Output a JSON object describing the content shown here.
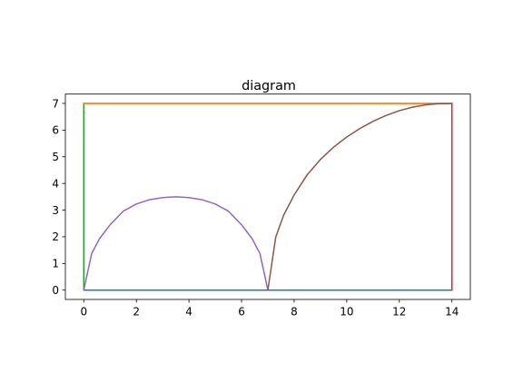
{
  "chart_data": {
    "type": "line",
    "title": "diagram",
    "xlabel": "",
    "ylabel": "",
    "xlim": [
      -0.7,
      14.7
    ],
    "ylim": [
      -0.35,
      7.35
    ],
    "xticks": [
      0,
      2,
      4,
      6,
      8,
      10,
      12,
      14
    ],
    "xtick_labels": [
      "0",
      "2",
      "4",
      "6",
      "8",
      "10",
      "12",
      "14"
    ],
    "yticks": [
      0,
      1,
      2,
      3,
      4,
      5,
      6,
      7
    ],
    "ytick_labels": [
      "0",
      "1",
      "2",
      "3",
      "4",
      "5",
      "6",
      "7"
    ],
    "grid": false,
    "legend": "none",
    "series": [
      {
        "color": "#1f77b4",
        "x": [
          0,
          14
        ],
        "y": [
          0,
          0
        ]
      },
      {
        "color": "#ff7f0e",
        "x": [
          0,
          14
        ],
        "y": [
          7,
          7
        ]
      },
      {
        "color": "#2ca02c",
        "x": [
          0,
          0
        ],
        "y": [
          0,
          7
        ]
      },
      {
        "color": "#d62728",
        "x": [
          14,
          14
        ],
        "y": [
          0,
          7
        ]
      },
      {
        "color": "#9467bd",
        "x": [
          0,
          0.3,
          0.6,
          1.0,
          1.5,
          2.0,
          2.5,
          3.0,
          3.5,
          4.0,
          4.5,
          5.0,
          5.5,
          6.0,
          6.4,
          6.7,
          7.0
        ],
        "y": [
          0,
          1.37,
          1.93,
          2.45,
          2.96,
          3.23,
          3.39,
          3.47,
          3.5,
          3.47,
          3.39,
          3.23,
          2.96,
          2.45,
          1.93,
          1.37,
          0
        ]
      },
      {
        "color": "#ff7f0e",
        "x": [
          0,
          14
        ],
        "y": [
          7,
          7
        ]
      },
      {
        "color": "#8c564b",
        "x": [
          7.0,
          7.3,
          7.6,
          8.0,
          8.5,
          9.0,
          9.5,
          10.0,
          10.5,
          11.0,
          11.5,
          12.0,
          12.5,
          13.0,
          13.5,
          14.0
        ],
        "y": [
          0,
          1.99,
          2.81,
          3.57,
          4.33,
          4.9,
          5.36,
          5.74,
          6.06,
          6.33,
          6.55,
          6.73,
          6.86,
          6.95,
          6.99,
          7.0
        ]
      }
    ]
  }
}
